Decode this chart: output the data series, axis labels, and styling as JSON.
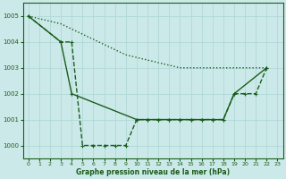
{
  "bg_color": "#cce9e9",
  "grid_color": "#b0d8d8",
  "line_color": "#1a5c1a",
  "xlabel": "Graphe pression niveau de la mer (hPa)",
  "ylim": [
    999.5,
    1005.5
  ],
  "xlim": [
    -0.5,
    23.5
  ],
  "yticks": [
    1000,
    1001,
    1002,
    1003,
    1004,
    1005
  ],
  "xticks": [
    0,
    1,
    2,
    3,
    4,
    5,
    6,
    7,
    8,
    9,
    10,
    11,
    12,
    13,
    14,
    15,
    16,
    17,
    18,
    19,
    20,
    21,
    22,
    23
  ],
  "series": [
    {
      "x": [
        0,
        1,
        2,
        3,
        4,
        5,
        6,
        7,
        8,
        9,
        10,
        11,
        12,
        13,
        14,
        15,
        16,
        17,
        18,
        19,
        20,
        21,
        22
      ],
      "y": [
        1005,
        1004.9,
        1004.8,
        1004.7,
        1004.5,
        1004.3,
        1004.1,
        1003.9,
        1003.7,
        1003.5,
        1003.4,
        1003.3,
        1003.2,
        1003.1,
        1003.0,
        1003.0,
        1003.0,
        1003.0,
        1003.0,
        1003.0,
        1003.0,
        1003.0,
        1003.0
      ],
      "linestyle": "dotted",
      "marker": null,
      "linewidth": 1.0
    },
    {
      "x": [
        0,
        3,
        4,
        5,
        6,
        7,
        8,
        9,
        10,
        11,
        12,
        13,
        14,
        15,
        16,
        17,
        18,
        19,
        20,
        21,
        22
      ],
      "y": [
        1005,
        1004,
        1004,
        1000,
        1000,
        1000,
        1000,
        1000,
        1001,
        1001,
        1001,
        1001,
        1001,
        1001,
        1001,
        1001,
        1001,
        1002,
        1002,
        1002,
        1003
      ],
      "linestyle": "--",
      "marker": "+",
      "linewidth": 1.0
    },
    {
      "x": [
        0,
        3,
        4,
        10,
        11,
        12,
        13,
        14,
        15,
        16,
        17,
        18,
        19,
        22
      ],
      "y": [
        1005,
        1004,
        1002,
        1001,
        1001,
        1001,
        1001,
        1001,
        1001,
        1001,
        1001,
        1001,
        1002,
        1003
      ],
      "linestyle": "-",
      "marker": "+",
      "linewidth": 1.0
    }
  ]
}
